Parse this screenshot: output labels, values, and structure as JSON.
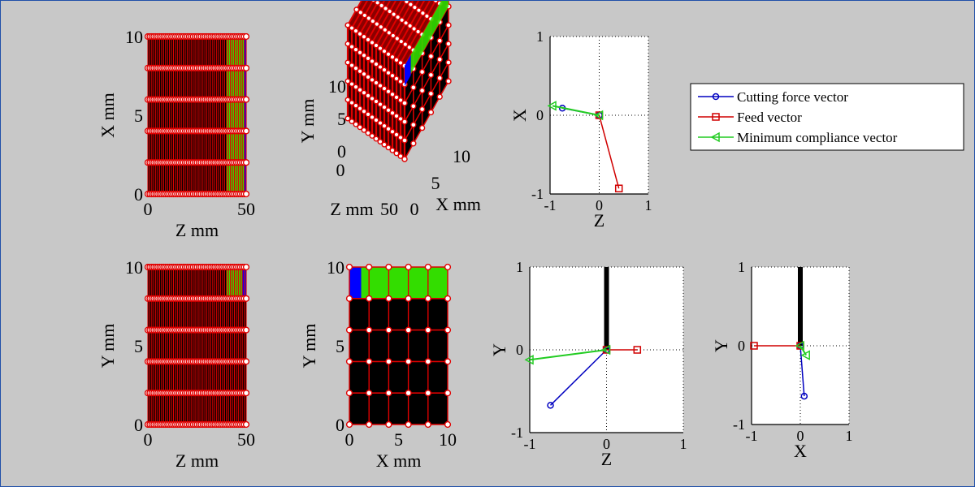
{
  "colors": {
    "background": "#c8c8c8",
    "mesh_fill": "#000000",
    "mesh_edge": "#e00000",
    "node_face": "#ffffff",
    "active_green": "#33dd00",
    "active_blue": "#0000ff",
    "cutting_force": "#0000c0",
    "feed": "#d00000",
    "min_compliance": "#22cc22"
  },
  "legend": {
    "placement": "right",
    "items": [
      {
        "label": "Cutting force vector",
        "color": "#0000c0",
        "marker": "circle"
      },
      {
        "label": "Feed vector",
        "color": "#d00000",
        "marker": "square"
      },
      {
        "label": "Minimum compliance vector",
        "color": "#22cc22",
        "marker": "triangle-left"
      }
    ]
  },
  "chart_data": [
    {
      "id": "mesh_zx",
      "type": "mesh",
      "xlabel": "Z mm",
      "ylabel": "X mm",
      "xlim": [
        0,
        50
      ],
      "ylim": [
        0,
        10
      ],
      "xticks": [
        "0",
        "50"
      ],
      "yticks": [
        "0",
        "5",
        "10"
      ],
      "columns": 50,
      "rows": 5,
      "green_z_range": [
        40,
        49
      ],
      "blue_z_range": [
        49,
        50
      ]
    },
    {
      "id": "mesh_3d",
      "type": "mesh3d",
      "xlabel": "X mm",
      "ylabel": "Y mm",
      "zlabel": "Z mm",
      "yticks": [
        "0",
        "5",
        "10"
      ],
      "xticks": [
        "0",
        "5",
        "10"
      ],
      "zticks": [
        "0",
        "50"
      ]
    },
    {
      "id": "vectors_zx",
      "type": "line",
      "xlabel": "Z",
      "ylabel": "X",
      "xlim": [
        -1,
        1
      ],
      "ylim": [
        -1,
        1
      ],
      "xticks": [
        "-1",
        "0",
        "1"
      ],
      "yticks": [
        "-1",
        "0",
        "1"
      ],
      "grid": "dotted",
      "series": [
        {
          "name": "Cutting force vector",
          "x": [
            0,
            -0.75
          ],
          "y": [
            0,
            0.09
          ]
        },
        {
          "name": "Feed vector",
          "x": [
            0,
            0.4
          ],
          "y": [
            0,
            -0.93
          ]
        },
        {
          "name": "Minimum compliance vector",
          "x": [
            0,
            -0.95
          ],
          "y": [
            0,
            0.12
          ]
        }
      ]
    },
    {
      "id": "mesh_zy",
      "type": "mesh",
      "xlabel": "Z mm",
      "ylabel": "Y mm",
      "xlim": [
        0,
        50
      ],
      "ylim": [
        0,
        10
      ],
      "xticks": [
        "0",
        "50"
      ],
      "yticks": [
        "0",
        "5",
        "10"
      ],
      "columns": 50,
      "rows": 5,
      "active_y_range": [
        8,
        10
      ],
      "green_z_range": [
        40,
        48
      ],
      "blue_z_range": [
        48,
        50
      ]
    },
    {
      "id": "mesh_xy",
      "type": "mesh",
      "xlabel": "X mm",
      "ylabel": "Y mm",
      "xlim": [
        0,
        10
      ],
      "ylim": [
        0,
        10
      ],
      "xticks": [
        "0",
        "5",
        "10"
      ],
      "yticks": [
        "0",
        "5",
        "10"
      ],
      "columns": 5,
      "rows": 5,
      "active_y_range": [
        8,
        10
      ],
      "blue_x_range": [
        0,
        1.2
      ],
      "green_x_range": [
        1.2,
        10
      ]
    },
    {
      "id": "vectors_zy",
      "type": "line",
      "xlabel": "Z",
      "ylabel": "Y",
      "xlim": [
        -1,
        1
      ],
      "ylim": [
        -1,
        1
      ],
      "xticks": [
        "-1",
        "0",
        "1"
      ],
      "yticks": [
        "-1",
        "0",
        "1"
      ],
      "grid": "dotted",
      "tool_line": {
        "x": 0,
        "y": [
          0,
          1
        ]
      },
      "series": [
        {
          "name": "Cutting force vector",
          "x": [
            0,
            -0.73
          ],
          "y": [
            0,
            -0.67
          ]
        },
        {
          "name": "Feed vector",
          "x": [
            0,
            0.4
          ],
          "y": [
            0,
            0.0
          ]
        },
        {
          "name": "Minimum compliance vector",
          "x": [
            0,
            -1.0
          ],
          "y": [
            0,
            -0.12
          ]
        }
      ]
    },
    {
      "id": "vectors_xy",
      "type": "line",
      "xlabel": "X",
      "ylabel": "Y",
      "xlim": [
        -1,
        1
      ],
      "ylim": [
        -1,
        1
      ],
      "xticks": [
        "-1",
        "0",
        "1"
      ],
      "yticks": [
        "-1",
        "0",
        "1"
      ],
      "grid": "dotted",
      "tool_line": {
        "x": 0,
        "y": [
          0,
          1
        ]
      },
      "series": [
        {
          "name": "Cutting force vector",
          "x": [
            0,
            0.08
          ],
          "y": [
            0,
            -0.64
          ]
        },
        {
          "name": "Feed vector",
          "x": [
            0,
            -0.95
          ],
          "y": [
            0,
            0.0
          ]
        },
        {
          "name": "Minimum compliance vector",
          "x": [
            0,
            0.12
          ],
          "y": [
            0,
            -0.12
          ]
        }
      ]
    }
  ]
}
